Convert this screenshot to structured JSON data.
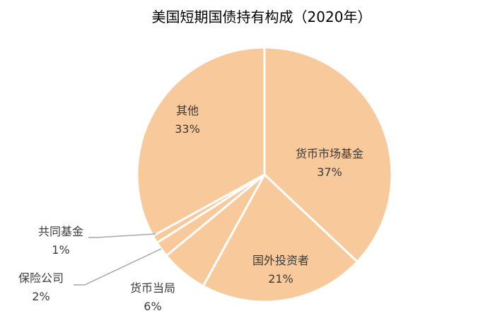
{
  "chart_data": {
    "type": "pie",
    "title": "美国短期国债持有构成（2020年）",
    "slices": [
      {
        "label": "货币市场基金",
        "value": 37,
        "value_label": "37%"
      },
      {
        "label": "国外投资者",
        "value": 21,
        "value_label": "21%"
      },
      {
        "label": "货币当局",
        "value": 6,
        "value_label": "6%"
      },
      {
        "label": "保险公司",
        "value": 2,
        "value_label": "2%"
      },
      {
        "label": "共同基金",
        "value": 1,
        "value_label": "1%"
      },
      {
        "label": "其他",
        "value": 33,
        "value_label": "33%"
      }
    ],
    "start_angle_deg": 0,
    "direction": "clockwise",
    "legend": "none",
    "colors": {
      "slice_fill": "#F8C99A",
      "slice_stroke": "#FFFFFF",
      "leader_line": "#A6A6A6",
      "text": "#3A3A3A"
    }
  }
}
